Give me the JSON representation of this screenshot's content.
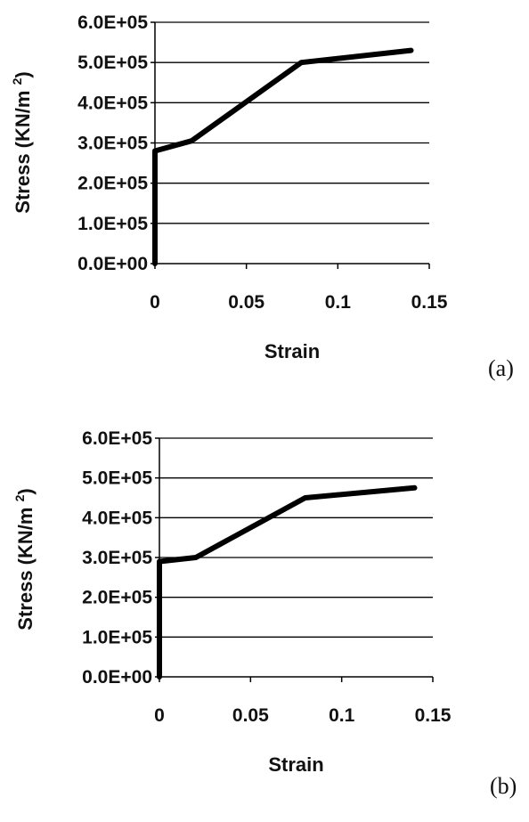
{
  "chart_data": [
    {
      "type": "line",
      "panel_label": "(a)",
      "xlabel": "Strain",
      "ylabel": "Stress (KN/m",
      "ylabel_sup": "2",
      "ylabel_close": ")",
      "xlim": [
        0,
        0.15
      ],
      "ylim": [
        0,
        600000
      ],
      "xticks": [
        0,
        0.05,
        0.1,
        0.15
      ],
      "xtick_labels": [
        "0",
        "0.05",
        "0.1",
        "0.15"
      ],
      "yticks": [
        0,
        100000,
        200000,
        300000,
        400000,
        500000,
        600000
      ],
      "ytick_labels": [
        "0.0E+00",
        "1.0E+05",
        "2.0E+05",
        "3.0E+05",
        "4.0E+05",
        "5.0E+05",
        "6.0E+05"
      ],
      "grid": "horizontal",
      "legend": "none",
      "series": [
        {
          "x": [
            0,
            0,
            0.02,
            0.08,
            0.14
          ],
          "y": [
            0,
            280000,
            305000,
            500000,
            530000
          ]
        }
      ]
    },
    {
      "type": "line",
      "panel_label": "(b)",
      "xlabel": "Strain",
      "ylabel": "Stress (KN/m",
      "ylabel_sup": "2",
      "ylabel_close": ")",
      "xlim": [
        0,
        0.15
      ],
      "ylim": [
        0,
        600000
      ],
      "xticks": [
        0,
        0.05,
        0.1,
        0.15
      ],
      "xtick_labels": [
        "0",
        "0.05",
        "0.1",
        "0.15"
      ],
      "yticks": [
        0,
        100000,
        200000,
        300000,
        400000,
        500000,
        600000
      ],
      "ytick_labels": [
        "0.0E+00",
        "1.0E+05",
        "2.0E+05",
        "3.0E+05",
        "4.0E+05",
        "5.0E+05",
        "6.0E+05"
      ],
      "grid": "horizontal",
      "legend": "none",
      "series": [
        {
          "x": [
            0,
            0,
            0.02,
            0.08,
            0.14
          ],
          "y": [
            0,
            290000,
            300000,
            450000,
            475000
          ]
        }
      ]
    }
  ]
}
